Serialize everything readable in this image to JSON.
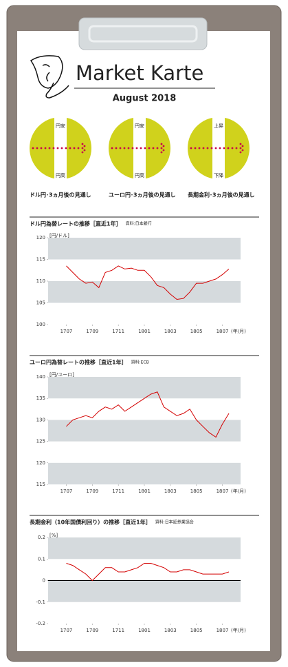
{
  "header": {
    "title": "Market Karte",
    "subtitle": "August   2018"
  },
  "outlooks": [
    {
      "top": "円安",
      "bottom": "円高",
      "caption": "ドル円･3ヵ月後の見通し"
    },
    {
      "top": "円安",
      "bottom": "円高",
      "caption": "ユーロ円･3ヵ月後の見通し"
    },
    {
      "top": "上昇",
      "bottom": "下降",
      "caption": "長期金利･3ヵ月後の見通し"
    }
  ],
  "chart_data": [
    {
      "type": "line",
      "title": "ドル円為替レートの推移［直近1年］",
      "source": "資料:日本銀行",
      "unit": "[円/ドル]",
      "xlabel": "(年/月)",
      "x": [
        0,
        0.5,
        1,
        1.5,
        2,
        2.5,
        3,
        3.5,
        4,
        4.5,
        5,
        5.5,
        6,
        6.5,
        7,
        7.5,
        8,
        8.5,
        9,
        9.5,
        10,
        10.5,
        11,
        11.5,
        12,
        12.5
      ],
      "xlim": [
        -1.4,
        13.4
      ],
      "xticks": [
        {
          "value": 0,
          "label": "1707"
        },
        {
          "value": 2,
          "label": "1709"
        },
        {
          "value": 4,
          "label": "1711"
        },
        {
          "value": 6,
          "label": "1801"
        },
        {
          "value": 8,
          "label": "1803"
        },
        {
          "value": 10,
          "label": "1805"
        },
        {
          "value": 12,
          "label": "1807"
        }
      ],
      "ylim": [
        100,
        120
      ],
      "yticks": [
        100,
        105,
        110,
        115,
        120
      ],
      "series": [
        {
          "color": "#d40000",
          "values": [
            113.5,
            112,
            110.5,
            109.5,
            109.8,
            108.5,
            112,
            112.5,
            113.5,
            112.8,
            113,
            112.5,
            112.5,
            111,
            109,
            108.5,
            107,
            105.8,
            106,
            107.5,
            109.5,
            109.5,
            110,
            110.5,
            111.5,
            112.8
          ]
        }
      ]
    },
    {
      "type": "line",
      "title": "ユーロ円為替レートの推移［直近1年］",
      "source": "資料:ECB",
      "unit": "[円/ユーロ]",
      "xlabel": "(年/月)",
      "x": [
        0,
        0.5,
        1,
        1.5,
        2,
        2.5,
        3,
        3.5,
        4,
        4.5,
        5,
        5.5,
        6,
        6.5,
        7,
        7.5,
        8,
        8.5,
        9,
        9.5,
        10,
        10.5,
        11,
        11.5,
        12,
        12.5
      ],
      "xlim": [
        -1.4,
        13.4
      ],
      "xticks": [
        {
          "value": 0,
          "label": "1707"
        },
        {
          "value": 2,
          "label": "1709"
        },
        {
          "value": 4,
          "label": "1711"
        },
        {
          "value": 6,
          "label": "1801"
        },
        {
          "value": 8,
          "label": "1803"
        },
        {
          "value": 10,
          "label": "1805"
        },
        {
          "value": 12,
          "label": "1807"
        }
      ],
      "ylim": [
        115,
        140
      ],
      "yticks": [
        115,
        120,
        125,
        130,
        135,
        140
      ],
      "series": [
        {
          "color": "#d40000",
          "values": [
            128.5,
            130,
            130.5,
            131,
            130.5,
            132,
            133,
            132.5,
            133.5,
            132,
            133,
            134,
            135,
            136,
            136.5,
            133,
            132,
            131,
            131.5,
            132.5,
            130,
            128.5,
            127,
            126,
            129,
            131.5
          ]
        }
      ]
    },
    {
      "type": "line",
      "title": "長期金利（10年国債利回り）の推移［直近1年］",
      "source": "資料:日本証券業協会",
      "unit": "[%]",
      "xlabel": "(年/月)",
      "x": [
        0,
        0.5,
        1,
        1.5,
        2,
        2.5,
        3,
        3.5,
        4,
        4.5,
        5,
        5.5,
        6,
        6.5,
        7,
        7.5,
        8,
        8.5,
        9,
        9.5,
        10,
        10.5,
        11,
        11.5,
        12,
        12.5
      ],
      "xlim": [
        -1.4,
        13.4
      ],
      "xticks": [
        {
          "value": 0,
          "label": "1707"
        },
        {
          "value": 2,
          "label": "1709"
        },
        {
          "value": 4,
          "label": "1711"
        },
        {
          "value": 6,
          "label": "1801"
        },
        {
          "value": 8,
          "label": "1803"
        },
        {
          "value": 10,
          "label": "1805"
        },
        {
          "value": 12,
          "label": "1807"
        }
      ],
      "ylim": [
        -0.2,
        0.2
      ],
      "yticks": [
        -0.2,
        -0.1,
        0,
        0.1,
        0.2
      ],
      "series": [
        {
          "color": "#d40000",
          "values": [
            0.08,
            0.07,
            0.05,
            0.03,
            0.0,
            0.03,
            0.06,
            0.06,
            0.04,
            0.04,
            0.05,
            0.06,
            0.08,
            0.08,
            0.07,
            0.06,
            0.04,
            0.04,
            0.05,
            0.05,
            0.04,
            0.03,
            0.03,
            0.03,
            0.03,
            0.04
          ]
        }
      ]
    }
  ]
}
